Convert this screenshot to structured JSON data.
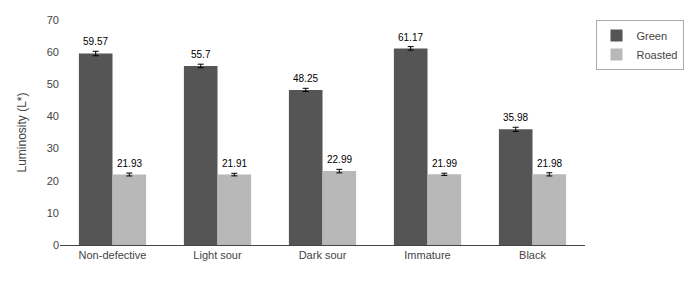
{
  "chart_data": {
    "type": "bar",
    "categories": [
      "Non-defective",
      "Light sour",
      "Dark sour",
      "Immature",
      "Black"
    ],
    "series": [
      {
        "name": "Green",
        "color": "#555555",
        "values": [
          59.57,
          55.7,
          48.25,
          61.17,
          35.98
        ],
        "errors": [
          0.7,
          0.55,
          0.5,
          0.55,
          0.65
        ]
      },
      {
        "name": "Roasted",
        "color": "#b8b8b8",
        "values": [
          21.93,
          21.91,
          22.99,
          21.99,
          21.98
        ],
        "errors": [
          0.45,
          0.4,
          0.55,
          0.35,
          0.5
        ]
      }
    ],
    "ylabel": "Luminosity (L*)",
    "ylim": [
      0,
      70
    ],
    "yticks": [
      0,
      10,
      20,
      30,
      40,
      50,
      60,
      70
    ],
    "grid": false,
    "legend": "right",
    "data_labels": true
  }
}
